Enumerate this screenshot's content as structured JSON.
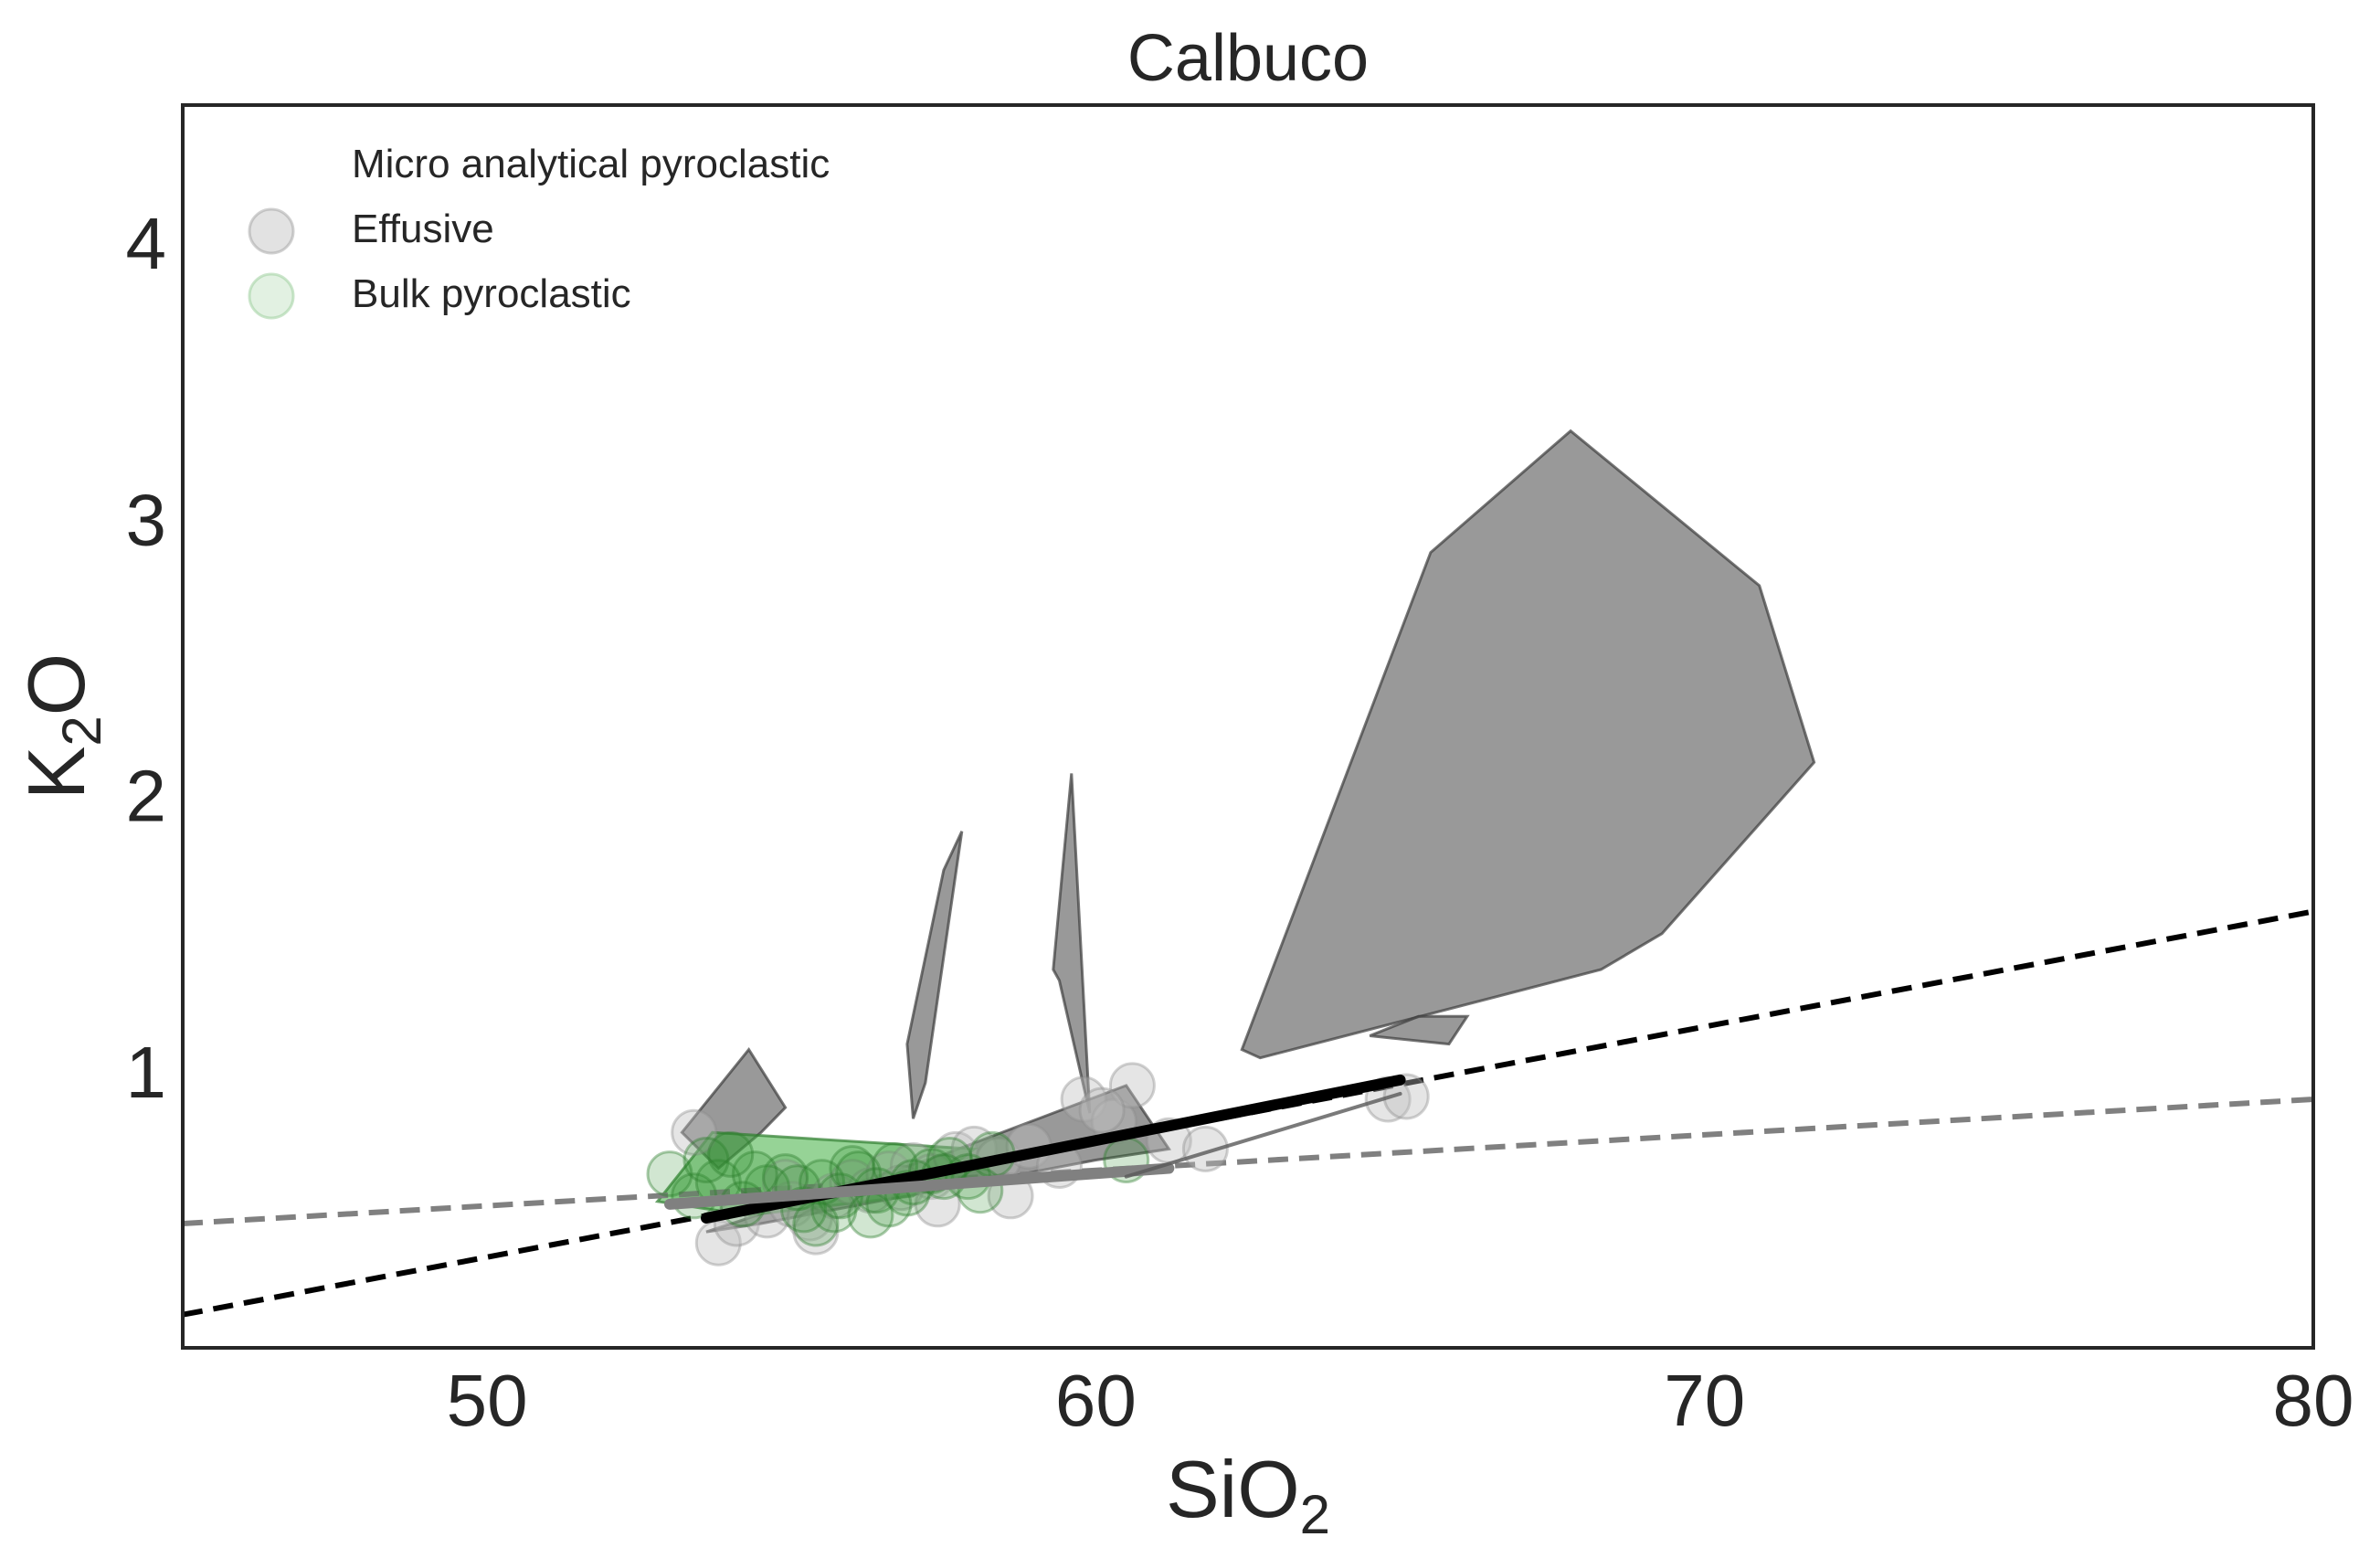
{
  "chart_data": {
    "type": "scatter",
    "title": "Calbuco",
    "xlabel": {
      "main": "SiO",
      "sub": "2"
    },
    "ylabel": {
      "main": "K",
      "sub": "2",
      "tail": "O"
    },
    "xlim": [
      45,
      80
    ],
    "ylim": [
      0,
      4.5
    ],
    "xticks": [
      50,
      60,
      70,
      80
    ],
    "yticks": [
      1,
      2,
      3,
      4
    ],
    "grid": false,
    "legend": {
      "placement": "upper-left",
      "entries": [
        {
          "label": "Micro analytical pyroclastic",
          "marker": "none"
        },
        {
          "label": "Effusive",
          "color": "#bfbfbf"
        },
        {
          "label": "Bulk pyroclastic",
          "color": "#cfe8cf"
        }
      ]
    },
    "colors": {
      "axes": "#262626",
      "polygon_gray_fill": "#7f7f7f",
      "polygon_gray_stroke": "#3c3c3c",
      "polygon_green_fill": "#3fae3f",
      "effusive_point": "#bdbdbd",
      "bulk_point": "#2e8b2e",
      "dashed_black": "#000000",
      "dashed_gray": "#808080"
    },
    "reference_lines": [
      {
        "name": "",
        "style": "dashed",
        "color": "#000000",
        "points": [
          [
            45,
            0.12
          ],
          [
            80,
            1.58
          ]
        ]
      },
      {
        "name": "",
        "style": "dashed",
        "color": "#808080",
        "points": [
          [
            45,
            0.45
          ],
          [
            80,
            0.9
          ]
        ]
      }
    ],
    "polygons": [
      {
        "fill": "#7f7f7f",
        "points": [
          [
            62.4,
            1.08
          ],
          [
            62.7,
            1.05
          ],
          [
            68.3,
            1.37
          ],
          [
            69.3,
            1.5
          ],
          [
            71.8,
            2.12
          ],
          [
            70.9,
            2.76
          ],
          [
            67.8,
            3.32
          ],
          [
            65.5,
            2.88
          ]
        ]
      },
      {
        "fill": "#7f7f7f",
        "points": [
          [
            64.5,
            1.13
          ],
          [
            65.3,
            1.2
          ],
          [
            66.1,
            1.2
          ],
          [
            65.8,
            1.1
          ]
        ]
      },
      {
        "fill": "#7f7f7f",
        "points": [
          [
            56.9,
            1.1
          ],
          [
            57.5,
            1.73
          ],
          [
            57.8,
            1.87
          ],
          [
            57.2,
            0.96
          ],
          [
            57.0,
            0.83
          ]
        ]
      },
      {
        "fill": "#7f7f7f",
        "points": [
          [
            59.3,
            1.37
          ],
          [
            59.6,
            2.08
          ],
          [
            59.9,
            0.85
          ],
          [
            59.4,
            1.33
          ]
        ]
      },
      {
        "fill": "#7f7f7f",
        "points": [
          [
            53.2,
            0.78
          ],
          [
            54.3,
            1.08
          ],
          [
            54.9,
            0.87
          ],
          [
            54.5,
            0.78
          ],
          [
            53.8,
            0.65
          ]
        ]
      },
      {
        "fill": "#7f7f7f",
        "points": [
          [
            53.6,
            0.42
          ],
          [
            57.5,
            0.7
          ],
          [
            60.5,
            0.95
          ],
          [
            61.2,
            0.72
          ],
          [
            60.0,
            0.68
          ],
          [
            54.5,
            0.45
          ]
        ]
      },
      {
        "fill": "#3fae3f",
        "points": [
          [
            52.8,
            0.53
          ],
          [
            53.7,
            0.78
          ],
          [
            58.0,
            0.72
          ],
          [
            57.0,
            0.55
          ],
          [
            54.3,
            0.48
          ]
        ]
      }
    ],
    "trend_segments": [
      {
        "color": "#000000",
        "width": "thick",
        "points": [
          [
            53.6,
            0.47
          ],
          [
            65.0,
            0.97
          ]
        ]
      },
      {
        "color": "#808080",
        "width": "thick",
        "points": [
          [
            53.0,
            0.52
          ],
          [
            61.2,
            0.65
          ]
        ]
      },
      {
        "color": "#595959",
        "width": "thin",
        "points": [
          [
            60.5,
            0.62
          ],
          [
            65.0,
            0.92
          ]
        ]
      }
    ],
    "series": [
      {
        "name": "Effusive",
        "x": [
          53.8,
          54.1,
          54.6,
          55.0,
          55.3,
          55.7,
          56.0,
          56.3,
          56.6,
          57.0,
          57.3,
          57.7,
          58.0,
          58.4,
          58.9,
          59.4,
          59.8,
          60.3,
          60.6,
          61.2,
          61.8,
          64.8,
          65.1,
          53.4,
          54.9,
          56.8,
          58.6,
          60.1,
          55.4,
          57.4
        ],
        "y": [
          0.38,
          0.45,
          0.48,
          0.52,
          0.47,
          0.55,
          0.6,
          0.57,
          0.63,
          0.66,
          0.62,
          0.7,
          0.72,
          0.68,
          0.73,
          0.66,
          0.9,
          0.82,
          0.95,
          0.75,
          0.72,
          0.9,
          0.91,
          0.78,
          0.6,
          0.58,
          0.55,
          0.86,
          0.42,
          0.52
        ]
      },
      {
        "name": "Bulk pyroclastic",
        "x": [
          53.0,
          53.4,
          53.8,
          54.2,
          54.6,
          54.9,
          55.2,
          55.5,
          55.8,
          56.1,
          56.4,
          56.7,
          57.0,
          57.3,
          57.6,
          57.9,
          58.3,
          53.6,
          54.4,
          55.1,
          55.7,
          56.3,
          56.9,
          57.5,
          58.1,
          55.4,
          56.0,
          56.6,
          54.0,
          60.5
        ],
        "y": [
          0.63,
          0.55,
          0.6,
          0.52,
          0.58,
          0.62,
          0.5,
          0.6,
          0.55,
          0.63,
          0.57,
          0.66,
          0.6,
          0.64,
          0.68,
          0.62,
          0.7,
          0.68,
          0.63,
          0.58,
          0.5,
          0.48,
          0.56,
          0.62,
          0.57,
          0.45,
          0.65,
          0.52,
          0.7,
          0.68
        ]
      }
    ]
  }
}
